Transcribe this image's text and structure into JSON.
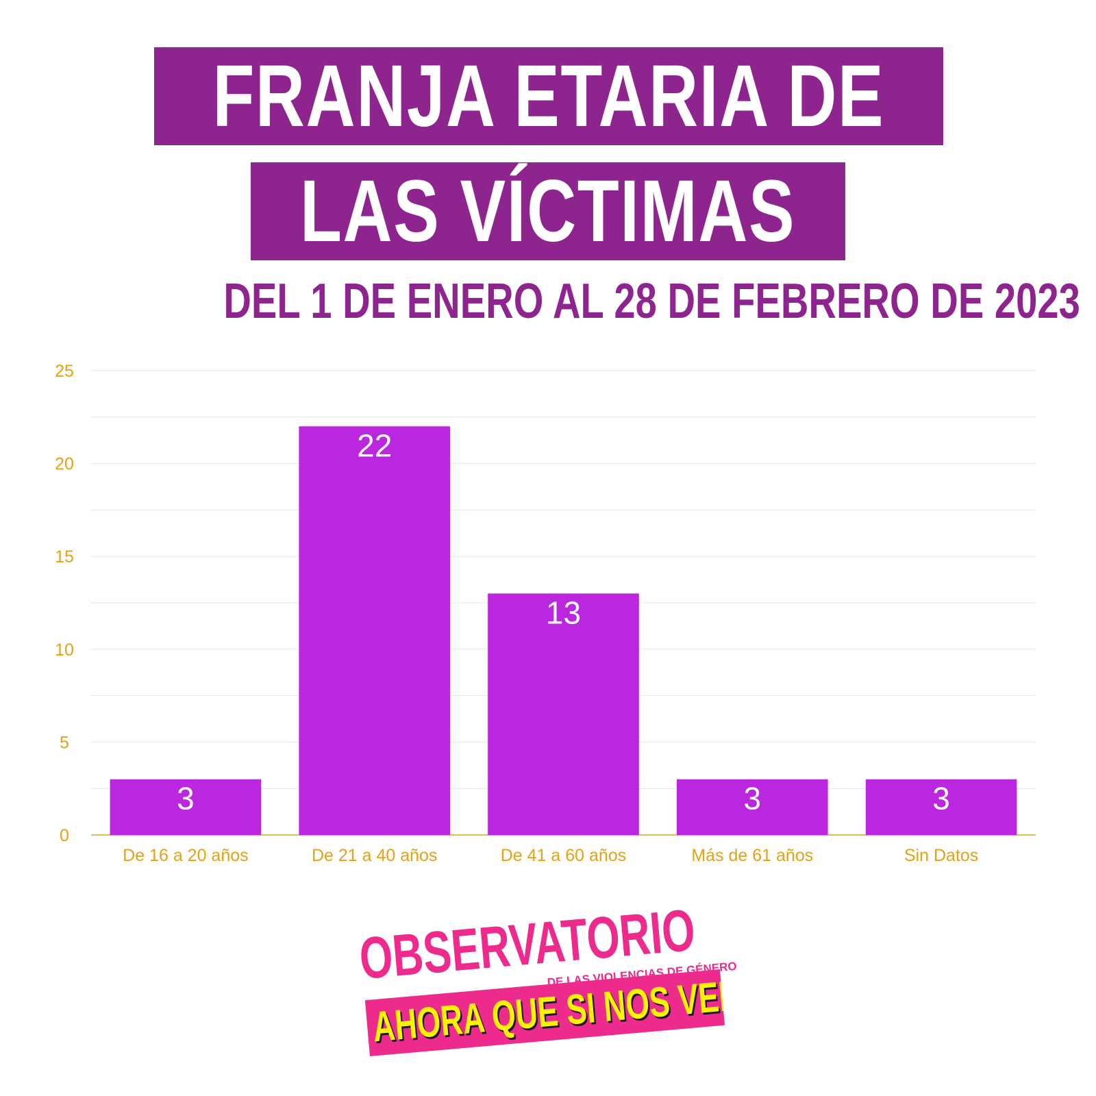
{
  "header": {
    "title_line1": "FRANJA ETARIA DE",
    "title_line2": "LAS VÍCTIMAS",
    "subtitle": "DEL 1 DE ENERO AL 28 DE FEBRERO DE 2023"
  },
  "colors": {
    "title_band": "#8e248d",
    "bar": "#bb27df",
    "axis_text": "#e8a013",
    "gridline": "#e6e6e6",
    "logo_pink": "#ec2b8c",
    "logo_yellow": "#fff200"
  },
  "chart_data": {
    "type": "bar",
    "categories": [
      "De 16 a 20 años",
      "De 21 a 40 años",
      "De 41 a 60 años",
      "Más de 61 años",
      "Sin Datos"
    ],
    "values": [
      3,
      22,
      13,
      3,
      3
    ],
    "data_labels": [
      "3",
      "22",
      "13",
      "3",
      "3"
    ],
    "ylim": [
      0,
      25
    ],
    "yticks": [
      0,
      5,
      10,
      15,
      20,
      25
    ],
    "grid": true,
    "legend": "none"
  },
  "logo": {
    "line1": "OBSERVATORIO",
    "line2": "DE LAS VIOLENCIAS DE GÉNERO",
    "line3": "AHORA QUE SI NOS VEN"
  }
}
